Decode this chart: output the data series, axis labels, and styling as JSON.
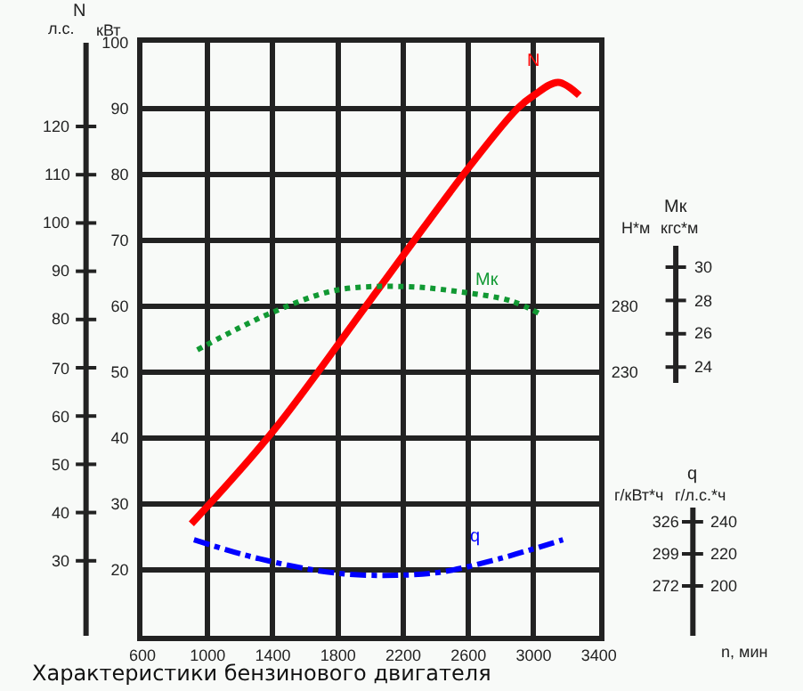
{
  "chart_data": {
    "type": "line",
    "xlabel": "n, мин",
    "ylabel": "кВт",
    "y2label": "Н*м",
    "y3label": "г/кВт*ч",
    "annotations": [
      "Характеристики бензинового двигателя",
      "N",
      "л.с.",
      "Mк",
      "кгс*м",
      "q",
      "г/л.с.*ч",
      "120",
      "110",
      "100",
      "90",
      "80",
      "70",
      "60",
      "50",
      "40",
      "30",
      "30",
      "28",
      "26",
      "24",
      "240",
      "220",
      "200"
    ],
    "xlim": [
      600,
      3400
    ],
    "xticks": [
      600,
      1000,
      1400,
      1800,
      2200,
      2600,
      3000,
      3400
    ],
    "ylim": [
      10,
      100
    ],
    "yticks": [
      {
        "value": 10,
        "label": null
      },
      20,
      30,
      40,
      50,
      60,
      70,
      80,
      90,
      100
    ],
    "y2lim": [
      30,
      480
    ],
    "y2ticks": [
      230,
      280
    ],
    "y3lim": [
      230,
      730
    ],
    "y3ticks": [
      272,
      299,
      326
    ],
    "grid": true,
    "legend": false,
    "series": [
      {
        "name": "N",
        "color": "#ff0000",
        "line_style": "solid",
        "x": [
          900,
          1400,
          2000,
          2600,
          2900,
          3000,
          3150,
          3280
        ],
        "values": [
          27,
          41,
          61,
          81,
          90,
          92,
          94,
          92
        ]
      },
      {
        "name": "Mк",
        "color": "#119933",
        "line_style": "dotted",
        "axis": "y2",
        "x": [
          937,
          1200,
          1390,
          1779,
          2211,
          2547,
          2863,
          3042
        ],
        "values": [
          247,
          264,
          275,
          292,
          295,
          291,
          284,
          274
        ]
      },
      {
        "name": "q",
        "color": "#0000ff",
        "line_style": "dashed",
        "axis": "y3",
        "x": [
          916,
          1316,
          1779,
          2158,
          2442,
          2790,
          3180
        ],
        "values": [
          311,
          295,
          283,
          281,
          284,
          295,
          311
        ]
      }
    ]
  }
}
